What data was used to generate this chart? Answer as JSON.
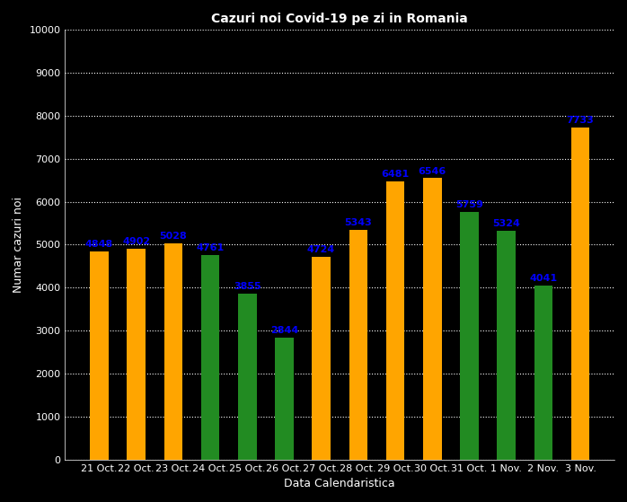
{
  "title": "Cazuri noi Covid-19 pe zi in Romania",
  "xlabel": "Data Calendaristica",
  "ylabel": "Numar cazuri noi",
  "categories": [
    "21 Oct.",
    "22 Oct.",
    "23 Oct.",
    "24 Oct.",
    "25 Oct.",
    "26 Oct.",
    "27 Oct.",
    "28 Oct.",
    "29 Oct.",
    "30 Oct.",
    "31 Oct.",
    "1 Nov.",
    "2 Nov.",
    "3 Nov."
  ],
  "values": [
    4848,
    4902,
    5028,
    4761,
    3855,
    2844,
    4724,
    5343,
    6481,
    6546,
    5759,
    5324,
    4041,
    7733
  ],
  "colors": [
    "#FFA500",
    "#FFA500",
    "#FFA500",
    "#228B22",
    "#228B22",
    "#228B22",
    "#FFA500",
    "#FFA500",
    "#FFA500",
    "#FFA500",
    "#228B22",
    "#228B22",
    "#228B22",
    "#FFA500"
  ],
  "ylim": [
    0,
    10000
  ],
  "yticks": [
    0,
    1000,
    2000,
    3000,
    4000,
    5000,
    6000,
    7000,
    8000,
    9000,
    10000
  ],
  "label_color": "#0000FF",
  "background_color": "#000000",
  "grid_color": "#FFFFFF",
  "text_color": "#FFFFFF",
  "title_fontsize": 10,
  "label_fontsize": 8,
  "axis_label_fontsize": 9,
  "bar_width": 0.5
}
